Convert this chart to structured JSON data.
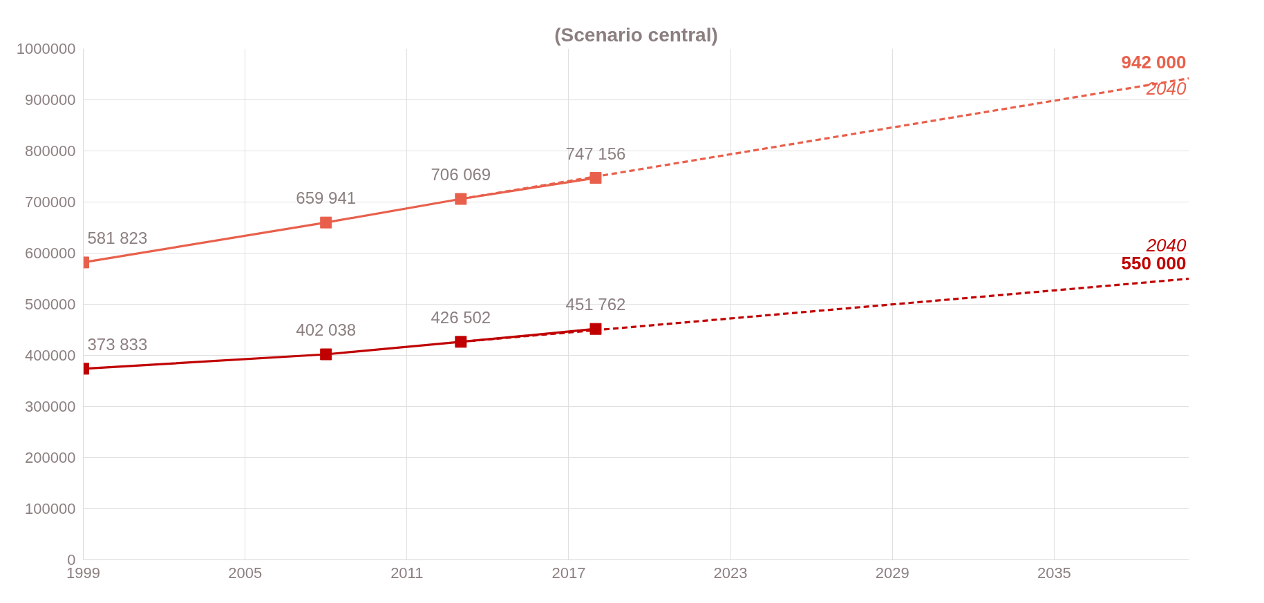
{
  "chart_data": {
    "type": "line",
    "title": "(Scenario central)",
    "xlim": [
      1999,
      2040
    ],
    "xticks": [
      1999,
      2005,
      2011,
      2017,
      2023,
      2029,
      2035
    ],
    "ylim": [
      0,
      1000000
    ],
    "yticks": [
      0,
      100000,
      200000,
      300000,
      400000,
      500000,
      600000,
      700000,
      800000,
      900000,
      1000000
    ],
    "grid": true,
    "series": [
      {
        "color": "#e8604c",
        "x": [
          1999,
          2008,
          2013,
          2018
        ],
        "values": [
          581823,
          659941,
          706069,
          747156
        ],
        "marker": "square",
        "line_style": "solid",
        "value_labels": [
          "581 823",
          "659 941",
          "706 069",
          "747 156"
        ]
      },
      {
        "color": "#e8604c",
        "x": [
          2013,
          2040
        ],
        "values": [
          706069,
          942000
        ],
        "marker": "none",
        "line_style": "dashed",
        "value_labels": [
          null,
          "942 000"
        ]
      },
      {
        "color": "#c00000",
        "x": [
          1999,
          2008,
          2013,
          2018
        ],
        "values": [
          373833,
          402038,
          426502,
          451762
        ],
        "marker": "square",
        "line_style": "solid",
        "value_labels": [
          "373 833",
          "402 038",
          "426 502",
          "451 762"
        ]
      },
      {
        "color": "#c00000",
        "x": [
          2013,
          2040
        ],
        "values": [
          426502,
          550000
        ],
        "marker": "none",
        "line_style": "dashed",
        "value_labels": [
          null,
          "550 000"
        ]
      }
    ],
    "annotations": [
      "2040",
      "2040"
    ]
  }
}
